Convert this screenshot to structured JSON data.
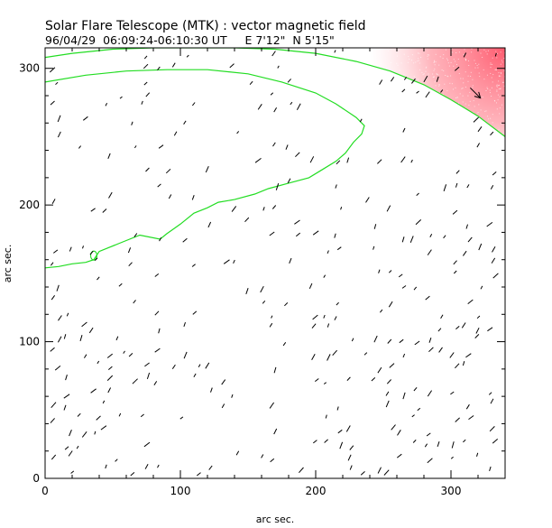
{
  "chart_data": {
    "type": "scatter",
    "title": "Solar Flare Telescope (MTK) : vector magnetic field",
    "subtitle": "96/04/29  06:09:24-06:10:30 UT     E 7'12\"  N 5'15\"",
    "xlabel": "arc sec.",
    "ylabel": "arc sec.",
    "xlim": [
      0,
      340
    ],
    "ylim": [
      0,
      315
    ],
    "x_ticks": [
      0,
      100,
      200,
      300
    ],
    "y_ticks": [
      0,
      100,
      200,
      300
    ],
    "grid": false,
    "colors": {
      "vectors": "#000000",
      "contour": "#22dd22",
      "limb_region": "#ff5a6e"
    },
    "contour_upper": {
      "x": [
        0,
        20,
        50,
        80,
        110,
        140,
        170,
        200,
        230,
        255,
        280,
        300,
        320,
        340
      ],
      "y": [
        308,
        311,
        314,
        315,
        315,
        315,
        314,
        311,
        305,
        298,
        288,
        277,
        265,
        250
      ]
    },
    "contour_lower": {
      "x": [
        0,
        10,
        20,
        30,
        36,
        40,
        55,
        70,
        85,
        90,
        100,
        110,
        120,
        128,
        140,
        155,
        165,
        180,
        195,
        205,
        215,
        222,
        228,
        234,
        236,
        230,
        215,
        200,
        175,
        150,
        120,
        90,
        60,
        30,
        0
      ],
      "y": [
        154,
        155,
        157,
        158,
        160,
        166,
        172,
        178,
        175,
        179,
        186,
        194,
        198,
        202,
        204,
        208,
        212,
        216,
        220,
        226,
        232,
        238,
        246,
        252,
        258,
        264,
        274,
        282,
        290,
        296,
        299,
        299,
        298,
        295,
        290
      ]
    },
    "vectors": [
      {
        "x": 318,
        "y": 282,
        "angle": -45,
        "length": 16,
        "arrow": true
      }
    ],
    "vector_field_seed": 19960429
  }
}
